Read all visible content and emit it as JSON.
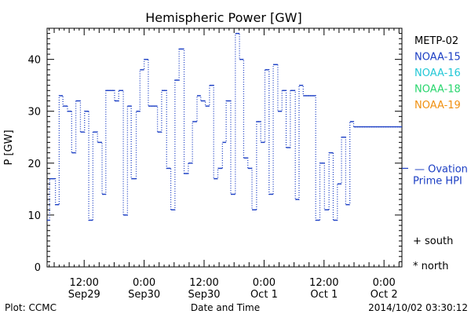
{
  "chart_data": {
    "type": "line",
    "title": "Hemispheric Power [GW]",
    "ylabel": "P [GW]",
    "xlabel": "Date and Time",
    "ylim": [
      0,
      46
    ],
    "xlim": [
      "2014-09-29T04:35",
      "2014-10-02T03:35"
    ],
    "yticks": [
      0,
      10,
      20,
      30,
      40
    ],
    "xticks": [
      {
        "t": "2014-09-29T12:00",
        "time": "12:00",
        "date": "Sep29"
      },
      {
        "t": "2014-09-30T00:00",
        "time": "0:00",
        "date": "Sep30"
      },
      {
        "t": "2014-09-30T12:00",
        "time": "12:00",
        "date": "Sep30"
      },
      {
        "t": "2014-10-01T00:00",
        "time": "0:00",
        "date": "Oct 1"
      },
      {
        "t": "2014-10-01T12:00",
        "time": "12:00",
        "date": "Oct 1"
      },
      {
        "t": "2014-10-02T00:00",
        "time": "0:00",
        "date": "Oct 2"
      }
    ],
    "grid": false,
    "legend_position": "right",
    "series": [
      {
        "name": "NOAA-15",
        "color": "#1c3fc4",
        "style": "dotted-step",
        "points": [
          [
            "2014-09-29T04:35",
            9
          ],
          [
            "2014-09-29T05:05",
            17
          ],
          [
            "2014-09-29T06:15",
            12
          ],
          [
            "2014-09-29T07:00",
            33
          ],
          [
            "2014-09-29T07:45",
            31
          ],
          [
            "2014-09-29T08:40",
            30
          ],
          [
            "2014-09-29T09:30",
            22
          ],
          [
            "2014-09-29T10:20",
            32
          ],
          [
            "2014-09-29T11:15",
            26
          ],
          [
            "2014-09-29T12:05",
            30
          ],
          [
            "2014-09-29T12:55",
            9
          ],
          [
            "2014-09-29T13:45",
            26
          ],
          [
            "2014-09-29T14:40",
            24
          ],
          [
            "2014-09-29T15:35",
            14
          ],
          [
            "2014-09-29T16:20",
            34
          ],
          [
            "2014-09-29T18:05",
            32
          ],
          [
            "2014-09-29T18:55",
            34
          ],
          [
            "2014-09-29T19:50",
            10
          ],
          [
            "2014-09-29T20:40",
            31
          ],
          [
            "2014-09-29T21:25",
            17
          ],
          [
            "2014-09-29T22:25",
            30
          ],
          [
            "2014-09-29T23:10",
            38
          ],
          [
            "2014-09-30T00:00",
            40
          ],
          [
            "2014-09-30T00:50",
            31
          ],
          [
            "2014-09-30T02:40",
            26
          ],
          [
            "2014-09-30T03:30",
            34
          ],
          [
            "2014-09-30T04:30",
            19
          ],
          [
            "2014-09-30T05:20",
            11
          ],
          [
            "2014-09-30T06:10",
            36
          ],
          [
            "2014-09-30T07:00",
            42
          ],
          [
            "2014-09-30T08:00",
            18
          ],
          [
            "2014-09-30T08:50",
            20
          ],
          [
            "2014-09-30T09:40",
            28
          ],
          [
            "2014-09-30T10:35",
            33
          ],
          [
            "2014-09-30T11:20",
            32
          ],
          [
            "2014-09-30T12:15",
            31
          ],
          [
            "2014-09-30T13:05",
            35
          ],
          [
            "2014-09-30T13:55",
            17
          ],
          [
            "2014-09-30T14:45",
            19
          ],
          [
            "2014-09-30T15:40",
            24
          ],
          [
            "2014-09-30T16:25",
            32
          ],
          [
            "2014-09-30T17:20",
            14
          ],
          [
            "2014-09-30T18:15",
            45
          ],
          [
            "2014-09-30T19:05",
            40
          ],
          [
            "2014-09-30T19:55",
            21
          ],
          [
            "2014-09-30T20:45",
            19
          ],
          [
            "2014-09-30T21:35",
            11
          ],
          [
            "2014-09-30T22:30",
            28
          ],
          [
            "2014-09-30T23:20",
            24
          ],
          [
            "2014-10-01T00:10",
            38
          ],
          [
            "2014-10-01T01:00",
            14
          ],
          [
            "2014-10-01T01:50",
            39
          ],
          [
            "2014-10-01T02:45",
            30
          ],
          [
            "2014-10-01T03:35",
            34
          ],
          [
            "2014-10-01T04:25",
            23
          ],
          [
            "2014-10-01T05:15",
            34
          ],
          [
            "2014-10-01T06:15",
            13
          ],
          [
            "2014-10-01T07:00",
            35
          ],
          [
            "2014-10-01T07:50",
            33
          ],
          [
            "2014-10-01T10:20",
            9
          ],
          [
            "2014-10-01T11:10",
            20
          ],
          [
            "2014-10-01T12:05",
            11
          ],
          [
            "2014-10-01T13:00",
            22
          ],
          [
            "2014-10-01T13:50",
            9
          ],
          [
            "2014-10-01T14:40",
            16
          ],
          [
            "2014-10-01T15:30",
            25
          ],
          [
            "2014-10-01T16:20",
            12
          ],
          [
            "2014-10-01T17:10",
            28
          ],
          [
            "2014-10-01T17:55",
            27
          ]
        ]
      }
    ],
    "legend": [
      {
        "label": "METP-02",
        "color": "#000000"
      },
      {
        "label": "NOAA-15",
        "color": "#1c3fc4"
      },
      {
        "label": "NOAA-16",
        "color": "#22c7d6"
      },
      {
        "label": "NOAA-18",
        "color": "#2ad66e"
      },
      {
        "label": "NOAA-19",
        "color": "#f09010"
      }
    ],
    "ovation": {
      "value": 19,
      "label_line1": "— Ovation",
      "label_line2": "Prime HPI",
      "color": "#1c3fc4"
    },
    "symbols": {
      "south": "+ south",
      "north": "* north"
    }
  },
  "footer": {
    "left": "Plot: CCMC",
    "center": "Date and Time",
    "right": "2014/10/02 03:30:12"
  }
}
